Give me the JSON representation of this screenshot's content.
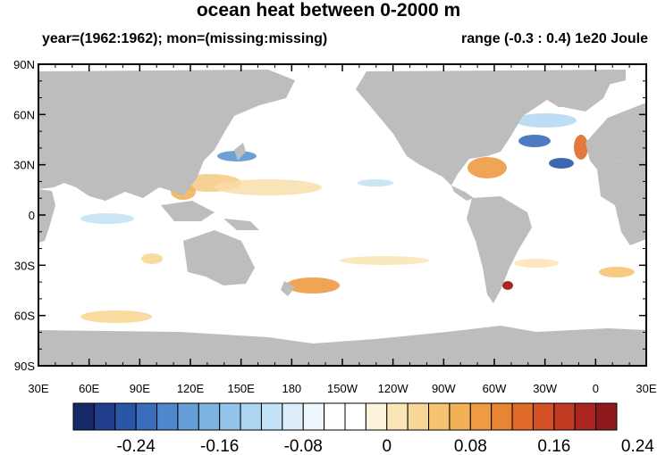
{
  "title": "ocean heat between 0-2000 m",
  "subtitle_left": "year=(1962:1962); mon=(missing:missing)",
  "subtitle_right": "range (-0.3 : 0.4) 1e20 Joule",
  "lat_labels": [
    "90N",
    "60N",
    "30N",
    "0",
    "30S",
    "60S",
    "90S"
  ],
  "lon_labels": [
    "30E",
    "60E",
    "90E",
    "120E",
    "150E",
    "180",
    "150W",
    "120W",
    "90W",
    "60W",
    "30W",
    "0",
    "30E"
  ],
  "colors": {
    "land": "#bdbdbd",
    "ocean": "#ffffff",
    "positive": "#f2b45e",
    "negative": "#8cc4e8"
  },
  "colorbar": {
    "labels": [
      "-0.24",
      "-0.16",
      "-0.08",
      "0",
      "0.08",
      "0.16",
      "0.24"
    ],
    "colors": [
      "#162a6a",
      "#213f8c",
      "#2a56a8",
      "#3a6ebd",
      "#4f86cc",
      "#659ed8",
      "#7bb3e1",
      "#93c5ea",
      "#abd5f0",
      "#c3e2f5",
      "#dbeefa",
      "#eef7fc",
      "#ffffff",
      "#ffffff",
      "#fdf3da",
      "#fbe6b8",
      "#f8d695",
      "#f5c473",
      "#f2b057",
      "#ee9b44",
      "#e98435",
      "#e06a2a",
      "#d45025",
      "#c33a22",
      "#ad2521",
      "#8f1a1d"
    ]
  }
}
